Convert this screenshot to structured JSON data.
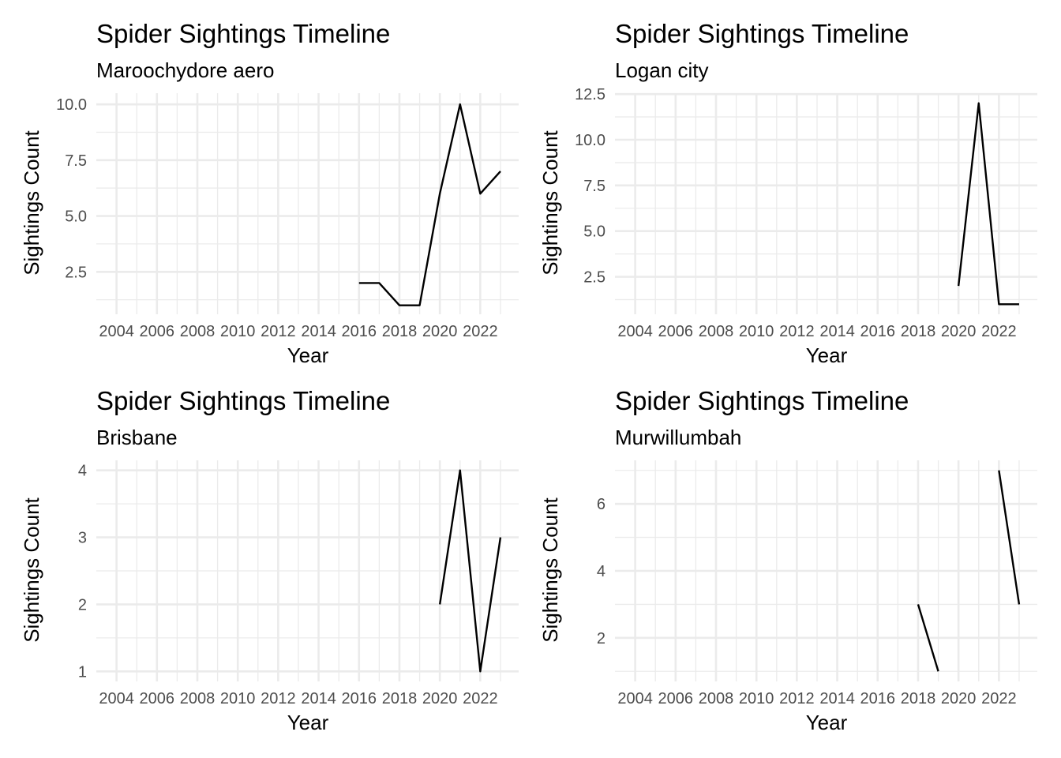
{
  "chart_data": [
    {
      "type": "line",
      "title": "Spider Sightings Timeline",
      "subtitle": "Maroochydore aero",
      "xlabel": "Year",
      "ylabel": "Sightings Count",
      "xlim": [
        2003,
        2023.9
      ],
      "ylim": [
        0.6,
        10.5
      ],
      "x_ticks": [
        2004,
        2006,
        2008,
        2010,
        2012,
        2014,
        2016,
        2018,
        2020,
        2022
      ],
      "x_ticks_minor": [
        2005,
        2007,
        2009,
        2011,
        2013,
        2015,
        2017,
        2019,
        2021,
        2023
      ],
      "y_ticks": [
        2.5,
        5.0,
        7.5,
        10.0
      ],
      "y_tick_labels": [
        "2.5",
        "5.0",
        "7.5",
        "10.0"
      ],
      "y_ticks_minor": [
        1.25,
        3.75,
        6.25,
        8.75
      ],
      "series": [
        {
          "x": [
            2016,
            2017,
            2018,
            2019,
            2020,
            2021,
            2022,
            2023
          ],
          "y": [
            2,
            2,
            1,
            1,
            6,
            10,
            6,
            7
          ]
        }
      ]
    },
    {
      "type": "line",
      "title": "Spider Sightings Timeline",
      "subtitle": "Logan city",
      "xlabel": "Year",
      "ylabel": "Sightings Count",
      "xlim": [
        2003,
        2023.9
      ],
      "ylim": [
        0.45,
        12.55
      ],
      "x_ticks": [
        2004,
        2006,
        2008,
        2010,
        2012,
        2014,
        2016,
        2018,
        2020,
        2022
      ],
      "x_ticks_minor": [
        2005,
        2007,
        2009,
        2011,
        2013,
        2015,
        2017,
        2019,
        2021,
        2023
      ],
      "y_ticks": [
        2.5,
        5.0,
        7.5,
        10.0,
        12.5
      ],
      "y_tick_labels": [
        "2.5",
        "5.0",
        "7.5",
        "10.0",
        "12.5"
      ],
      "y_ticks_minor": [
        1.25,
        3.75,
        6.25,
        8.75,
        11.25
      ],
      "series": [
        {
          "x": [
            2020,
            2021,
            2022,
            2023
          ],
          "y": [
            2,
            12,
            1,
            1
          ]
        }
      ]
    },
    {
      "type": "line",
      "title": "Spider Sightings Timeline",
      "subtitle": "Brisbane",
      "xlabel": "Year",
      "ylabel": "Sightings Count",
      "xlim": [
        2003,
        2023.9
      ],
      "ylim": [
        0.85,
        4.15
      ],
      "x_ticks": [
        2004,
        2006,
        2008,
        2010,
        2012,
        2014,
        2016,
        2018,
        2020,
        2022
      ],
      "x_ticks_minor": [
        2005,
        2007,
        2009,
        2011,
        2013,
        2015,
        2017,
        2019,
        2021,
        2023
      ],
      "y_ticks": [
        1,
        2,
        3,
        4
      ],
      "y_tick_labels": [
        "1",
        "2",
        "3",
        "4"
      ],
      "y_ticks_minor": [
        1.5,
        2.5,
        3.5
      ],
      "series": [
        {
          "x": [
            2020,
            2021,
            2022,
            2023
          ],
          "y": [
            2,
            4,
            1,
            3
          ]
        }
      ]
    },
    {
      "type": "line",
      "title": "Spider Sightings Timeline",
      "subtitle": "Murwillumbah",
      "xlabel": "Year",
      "ylabel": "Sightings Count",
      "xlim": [
        2003,
        2023.9
      ],
      "ylim": [
        0.7,
        7.3
      ],
      "x_ticks": [
        2004,
        2006,
        2008,
        2010,
        2012,
        2014,
        2016,
        2018,
        2020,
        2022
      ],
      "x_ticks_minor": [
        2005,
        2007,
        2009,
        2011,
        2013,
        2015,
        2017,
        2019,
        2021,
        2023
      ],
      "y_ticks": [
        2,
        4,
        6
      ],
      "y_tick_labels": [
        "2",
        "4",
        "6"
      ],
      "y_ticks_minor": [
        1,
        3,
        5,
        7
      ],
      "series": [
        {
          "x": [
            2018,
            2019
          ],
          "y": [
            3,
            1
          ]
        },
        {
          "x": [
            2022,
            2023
          ],
          "y": [
            7,
            3
          ]
        }
      ]
    }
  ]
}
